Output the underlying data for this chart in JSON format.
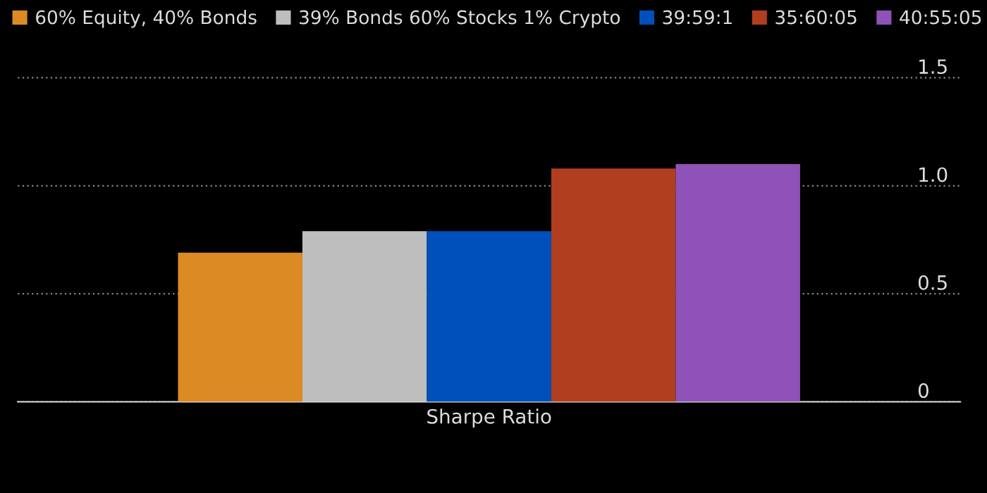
{
  "chart_data": {
    "type": "bar",
    "categories": [
      "Sharpe Ratio"
    ],
    "series": [
      {
        "name": "60% Equity, 40% Bonds",
        "color": "#dc8a24",
        "values": [
          0.69
        ]
      },
      {
        "name": "39% Bonds 60% Stocks 1% Crypto",
        "color": "#bebebe",
        "values": [
          0.79
        ]
      },
      {
        "name": "39:59:1",
        "color": "#0050bb",
        "values": [
          0.79
        ]
      },
      {
        "name": "35:60:05",
        "color": "#b13e1f",
        "values": [
          1.08
        ]
      },
      {
        "name": "40:55:05",
        "color": "#8e52b8",
        "values": [
          1.1
        ]
      }
    ],
    "ylim": [
      0,
      1.86
    ],
    "yticks": [
      0,
      0.5,
      {
        "value": 1,
        "label": "1.0"
      },
      1.5
    ],
    "grid": "y",
    "legend": "top left"
  }
}
